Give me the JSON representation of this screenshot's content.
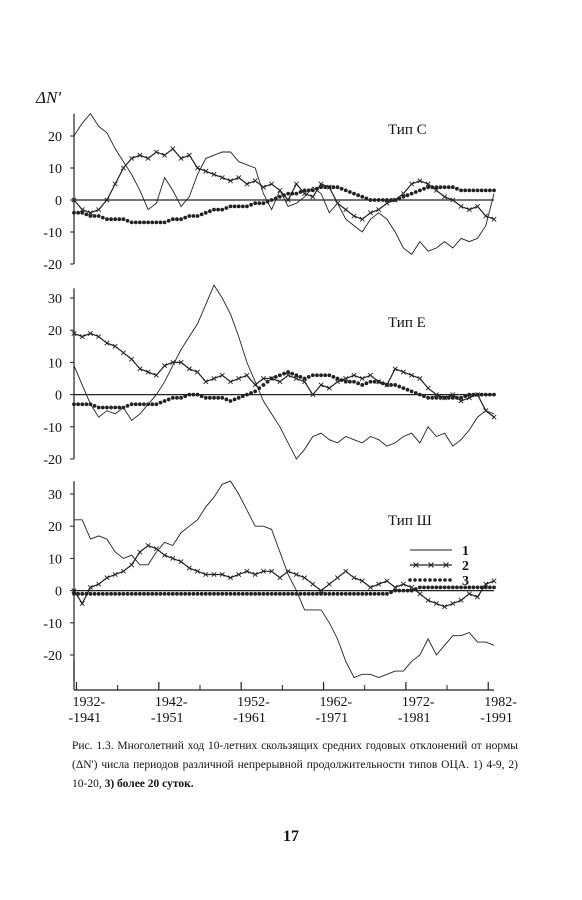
{
  "figure": {
    "y_axis_label": "ΔN'",
    "x_tick_labels": [
      [
        "1932-",
        "-1941"
      ],
      [
        "1942-",
        "-1951"
      ],
      [
        "1952-",
        "-1961"
      ],
      [
        "1962-",
        "-1971"
      ],
      [
        "1972-",
        "-1981"
      ],
      [
        "1982-",
        "-1991"
      ]
    ],
    "legend": [
      "1",
      "2",
      "3"
    ]
  },
  "chart_data": [
    {
      "type": "line",
      "title": "Тип С",
      "ylim": [
        -20,
        27
      ],
      "yticks": [
        20,
        10,
        0,
        -10,
        -20
      ],
      "x_start": 1932,
      "x_end": 1983,
      "series": [
        {
          "name": "1",
          "style": "thin",
          "x": [
            1932,
            1933,
            1934,
            1935,
            1936,
            1937,
            1938,
            1939,
            1940,
            1941,
            1942,
            1943,
            1944,
            1945,
            1946,
            1947,
            1948,
            1949,
            1950,
            1951,
            1952,
            1953,
            1954,
            1955,
            1956,
            1957,
            1958,
            1959,
            1960,
            1961,
            1962,
            1963,
            1964,
            1965,
            1966,
            1967,
            1968,
            1969,
            1970,
            1971,
            1972,
            1973,
            1974,
            1975,
            1976,
            1977,
            1978,
            1979,
            1980,
            1981,
            1982,
            1983
          ],
          "y": [
            20,
            24,
            27,
            23,
            21,
            16,
            12,
            8,
            3,
            -3,
            -1,
            7,
            3,
            -2,
            1,
            8,
            13,
            14,
            15,
            15,
            12,
            11,
            10,
            2,
            -3,
            3,
            -2,
            -1,
            1,
            4,
            2,
            -4,
            -1,
            -6,
            -8,
            -10,
            -6,
            -4,
            -6,
            -10,
            -15,
            -17,
            -13,
            -16,
            -15,
            -13,
            -15,
            -12,
            -13,
            -12,
            -8,
            2
          ]
        },
        {
          "name": "2",
          "style": "cross",
          "x": [
            1932,
            1933,
            1934,
            1935,
            1936,
            1937,
            1938,
            1939,
            1940,
            1941,
            1942,
            1943,
            1944,
            1945,
            1946,
            1947,
            1948,
            1949,
            1950,
            1951,
            1952,
            1953,
            1954,
            1955,
            1956,
            1957,
            1958,
            1959,
            1960,
            1961,
            1962,
            1963,
            1964,
            1965,
            1966,
            1967,
            1968,
            1969,
            1970,
            1971,
            1972,
            1973,
            1974,
            1975,
            1976,
            1977,
            1978,
            1979,
            1980,
            1981,
            1982,
            1983
          ],
          "y": [
            0,
            -3,
            -4,
            -3,
            0,
            5,
            10,
            13,
            14,
            13,
            15,
            14,
            16,
            13,
            14,
            10,
            9,
            8,
            7,
            6,
            7,
            5,
            6,
            4,
            5,
            3,
            0,
            5,
            2,
            1,
            5,
            4,
            -1,
            -3,
            -5,
            -6,
            -4,
            -3,
            -1,
            0,
            2,
            5,
            6,
            5,
            3,
            1,
            0,
            -2,
            -3,
            -2,
            -5,
            -6
          ]
        },
        {
          "name": "3",
          "style": "dots",
          "x": [
            1932,
            1933,
            1934,
            1935,
            1936,
            1937,
            1938,
            1939,
            1940,
            1941,
            1942,
            1943,
            1944,
            1945,
            1946,
            1947,
            1948,
            1949,
            1950,
            1951,
            1952,
            1953,
            1954,
            1955,
            1956,
            1957,
            1958,
            1959,
            1960,
            1961,
            1962,
            1963,
            1964,
            1965,
            1966,
            1967,
            1968,
            1969,
            1970,
            1971,
            1972,
            1973,
            1974,
            1975,
            1976,
            1977,
            1978,
            1979,
            1980,
            1981,
            1982,
            1983
          ],
          "y": [
            -4,
            -4,
            -5,
            -5,
            -6,
            -6,
            -6,
            -7,
            -7,
            -7,
            -7,
            -7,
            -6,
            -6,
            -5,
            -5,
            -4,
            -3,
            -3,
            -2,
            -2,
            -2,
            -1,
            -1,
            0,
            1,
            2,
            2,
            3,
            3,
            4,
            4,
            4,
            3,
            2,
            1,
            0,
            0,
            0,
            0,
            1,
            2,
            3,
            4,
            4,
            4,
            4,
            3,
            3,
            3,
            3,
            3
          ]
        }
      ]
    },
    {
      "type": "line",
      "title": "Тип Е",
      "ylim": [
        -20,
        33
      ],
      "yticks": [
        30,
        20,
        10,
        0,
        -10,
        -20
      ],
      "x_start": 1932,
      "x_end": 1983,
      "series": [
        {
          "name": "1",
          "style": "thin",
          "x": [
            1932,
            1933,
            1934,
            1935,
            1936,
            1937,
            1938,
            1939,
            1940,
            1941,
            1942,
            1943,
            1944,
            1945,
            1946,
            1947,
            1948,
            1949,
            1950,
            1951,
            1952,
            1953,
            1954,
            1955,
            1956,
            1957,
            1958,
            1959,
            1960,
            1961,
            1962,
            1963,
            1964,
            1965,
            1966,
            1967,
            1968,
            1969,
            1970,
            1971,
            1972,
            1973,
            1974,
            1975,
            1976,
            1977,
            1978,
            1979,
            1980,
            1981,
            1982,
            1983
          ],
          "y": [
            9,
            3,
            -3,
            -7,
            -5,
            -6,
            -4,
            -8,
            -6,
            -3,
            0,
            4,
            9,
            14,
            18,
            22,
            28,
            34,
            30,
            25,
            18,
            10,
            4,
            -2,
            -6,
            -10,
            -15,
            -20,
            -17,
            -13,
            -12,
            -14,
            -15,
            -13,
            -14,
            -15,
            -13,
            -14,
            -16,
            -15,
            -13,
            -12,
            -15,
            -10,
            -13,
            -12,
            -16,
            -14,
            -11,
            -7,
            -5,
            -6
          ]
        },
        {
          "name": "2",
          "style": "cross",
          "x": [
            1932,
            1933,
            1934,
            1935,
            1936,
            1937,
            1938,
            1939,
            1940,
            1941,
            1942,
            1943,
            1944,
            1945,
            1946,
            1947,
            1948,
            1949,
            1950,
            1951,
            1952,
            1953,
            1954,
            1955,
            1956,
            1957,
            1958,
            1959,
            1960,
            1961,
            1962,
            1963,
            1964,
            1965,
            1966,
            1967,
            1968,
            1969,
            1970,
            1971,
            1972,
            1973,
            1974,
            1975,
            1976,
            1977,
            1978,
            1979,
            1980,
            1981,
            1982,
            1983
          ],
          "y": [
            19,
            18,
            19,
            18,
            16,
            15,
            13,
            11,
            8,
            7,
            6,
            9,
            10,
            10,
            8,
            7,
            4,
            5,
            6,
            4,
            5,
            6,
            3,
            5,
            5,
            4,
            6,
            5,
            4,
            0,
            3,
            2,
            4,
            5,
            6,
            5,
            6,
            4,
            3,
            8,
            7,
            6,
            5,
            2,
            0,
            -1,
            0,
            -2,
            -1,
            0,
            -5,
            -7
          ]
        },
        {
          "name": "3",
          "style": "dots",
          "x": [
            1932,
            1933,
            1934,
            1935,
            1936,
            1937,
            1938,
            1939,
            1940,
            1941,
            1942,
            1943,
            1944,
            1945,
            1946,
            1947,
            1948,
            1949,
            1950,
            1951,
            1952,
            1953,
            1954,
            1955,
            1956,
            1957,
            1958,
            1959,
            1960,
            1961,
            1962,
            1963,
            1964,
            1965,
            1966,
            1967,
            1968,
            1969,
            1970,
            1971,
            1972,
            1973,
            1974,
            1975,
            1976,
            1977,
            1978,
            1979,
            1980,
            1981,
            1982,
            1983
          ],
          "y": [
            -3,
            -3,
            -3,
            -4,
            -4,
            -4,
            -4,
            -3,
            -3,
            -3,
            -3,
            -2,
            -1,
            -1,
            0,
            0,
            -1,
            -1,
            -1,
            -2,
            -1,
            0,
            1,
            3,
            5,
            6,
            7,
            6,
            5,
            6,
            6,
            6,
            5,
            4,
            4,
            3,
            4,
            4,
            3,
            3,
            2,
            1,
            0,
            -1,
            -1,
            -1,
            -1,
            -1,
            0,
            0,
            0,
            0
          ]
        }
      ]
    },
    {
      "type": "line",
      "title": "Тип Ш",
      "ylim": [
        -28,
        34
      ],
      "yticks": [
        30,
        20,
        10,
        0,
        -10,
        -20
      ],
      "x_start": 1932,
      "x_end": 1983,
      "series": [
        {
          "name": "1",
          "style": "thin",
          "x": [
            1932,
            1933,
            1934,
            1935,
            1936,
            1937,
            1938,
            1939,
            1940,
            1941,
            1942,
            1943,
            1944,
            1945,
            1946,
            1947,
            1948,
            1949,
            1950,
            1951,
            1952,
            1953,
            1954,
            1955,
            1956,
            1957,
            1958,
            1959,
            1960,
            1961,
            1962,
            1963,
            1964,
            1965,
            1966,
            1967,
            1968,
            1969,
            1970,
            1971,
            1972,
            1973,
            1974,
            1975,
            1976,
            1977,
            1978,
            1979,
            1980,
            1981,
            1982,
            1983
          ],
          "y": [
            22,
            22,
            16,
            17,
            16,
            12,
            10,
            11,
            8,
            8,
            12,
            15,
            14,
            18,
            20,
            22,
            26,
            29,
            33,
            34,
            30,
            25,
            20,
            20,
            19,
            12,
            5,
            0,
            -6,
            -6,
            -6,
            -10,
            -15,
            -22,
            -27,
            -26,
            -26,
            -27,
            -26,
            -25,
            -25,
            -22,
            -20,
            -15,
            -20,
            -17,
            -14,
            -14,
            -13,
            -16,
            -16,
            -17
          ]
        },
        {
          "name": "2",
          "style": "cross",
          "x": [
            1932,
            1933,
            1934,
            1935,
            1936,
            1937,
            1938,
            1939,
            1940,
            1941,
            1942,
            1943,
            1944,
            1945,
            1946,
            1947,
            1948,
            1949,
            1950,
            1951,
            1952,
            1953,
            1954,
            1955,
            1956,
            1957,
            1958,
            1959,
            1960,
            1961,
            1962,
            1963,
            1964,
            1965,
            1966,
            1967,
            1968,
            1969,
            1970,
            1971,
            1972,
            1973,
            1974,
            1975,
            1976,
            1977,
            1978,
            1979,
            1980,
            1981,
            1982,
            1983
          ],
          "y": [
            0,
            -4,
            1,
            2,
            4,
            5,
            6,
            8,
            12,
            14,
            13,
            11,
            10,
            9,
            7,
            6,
            5,
            5,
            5,
            4,
            5,
            6,
            5,
            6,
            6,
            4,
            6,
            5,
            4,
            2,
            0,
            2,
            4,
            6,
            4,
            3,
            1,
            2,
            3,
            1,
            2,
            1,
            -1,
            -3,
            -4,
            -5,
            -4,
            -3,
            -1,
            -2,
            2,
            3
          ]
        },
        {
          "name": "3",
          "style": "dots",
          "x": [
            1932,
            1933,
            1934,
            1935,
            1936,
            1937,
            1938,
            1939,
            1940,
            1941,
            1942,
            1943,
            1944,
            1945,
            1946,
            1947,
            1948,
            1949,
            1950,
            1951,
            1952,
            1953,
            1954,
            1955,
            1956,
            1957,
            1958,
            1959,
            1960,
            1961,
            1962,
            1963,
            1964,
            1965,
            1966,
            1967,
            1968,
            1969,
            1970,
            1971,
            1972,
            1973,
            1974,
            1975,
            1976,
            1977,
            1978,
            1979,
            1980,
            1981,
            1982,
            1983
          ],
          "y": [
            -1,
            -1,
            -1,
            -1,
            -1,
            -1,
            -1,
            -1,
            -1,
            -1,
            -1,
            -1,
            -1,
            -1,
            -1,
            -1,
            -1,
            -1,
            -1,
            -1,
            -1,
            -1,
            -1,
            -1,
            -1,
            -1,
            -1,
            -1,
            -1,
            -1,
            -1,
            -1,
            -1,
            -1,
            -1,
            -1,
            -1,
            -1,
            -1,
            0,
            0,
            0,
            1,
            1,
            1,
            1,
            1,
            1,
            1,
            1,
            1,
            1
          ]
        }
      ]
    }
  ],
  "caption": {
    "text": "Рис. 1.3. Многолетний ход 10-летних скользящих средних годовых отклонений от нормы (ΔN') числа периодов различной непрерывной продолжительности типов ОЦА. 1) 4-9, 2) 10-20,",
    "bold_tail": "3) более 20 суток."
  },
  "page_number": "17"
}
